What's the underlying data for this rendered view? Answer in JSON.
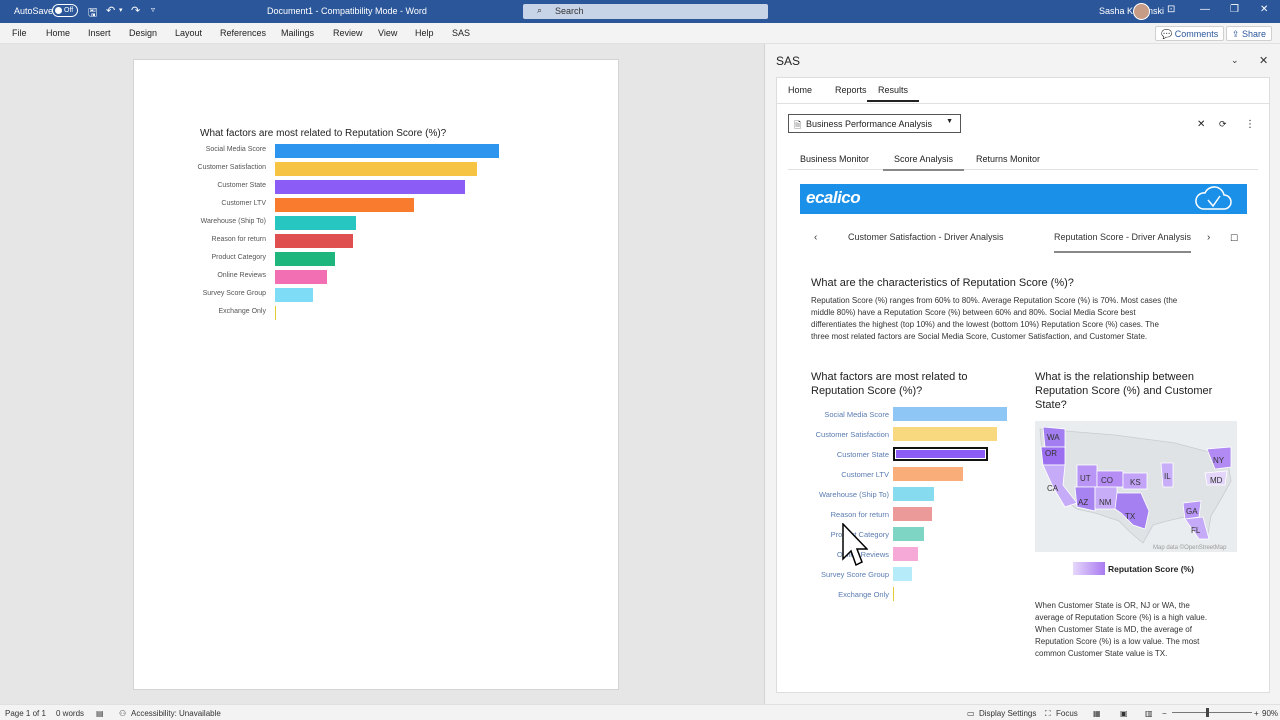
{
  "titlebar": {
    "autosave": "AutoSave",
    "autosave_state": "Off",
    "doc_title": "Document1 - Compatibility Mode - Word",
    "search_placeholder": "Search",
    "user_name": "Sasha Karpinski"
  },
  "menu": {
    "items": [
      "File",
      "Home",
      "Insert",
      "Design",
      "Layout",
      "References",
      "Mailings",
      "Review",
      "View",
      "Help",
      "SAS"
    ],
    "comments": "Comments",
    "share": "Share"
  },
  "document": {
    "chart_title": "What factors are most related to Reputation Score (%)?"
  },
  "pane": {
    "title": "SAS",
    "tabs": [
      "Home",
      "Reports",
      "Results"
    ],
    "active_tab": "Results",
    "report_dropdown": "Business Performance Analysis",
    "report_tabs": [
      "Business Monitor",
      "Score Analysis",
      "Returns Monitor"
    ],
    "active_report_tab": "Score Analysis",
    "banner_logo": "ecalico",
    "crumbs": [
      "Customer Satisfaction - Driver Analysis",
      "Reputation Score - Driver Analysis"
    ],
    "q1_title": "What are the characteristics of Reputation Score (%)?",
    "q1_lines": [
      "Reputation Score (%) ranges from 60% to 80%. Average Reputation Score (%) is 70%. Most cases (the",
      "middle 80%) have a Reputation Score (%) between 60% and 80%. Social Media Score best",
      "differentiates the highest (top 10%) and the lowest (bottom 10%) Reputation Score (%) cases. The",
      "three most related factors are Social Media Score, Customer Satisfaction, and Customer State."
    ],
    "q2_title_lines": [
      "What factors are most related to",
      "Reputation Score (%)?"
    ],
    "q3_title_lines": [
      "What is the relationship between",
      "Reputation Score (%) and Customer",
      "State?"
    ],
    "map_attribution": "Map data ©OpenStreetMap",
    "map_legend": "Reputation Score (%)",
    "q3_lines": [
      "When Customer State is OR, NJ or WA, the",
      "average of Reputation Score (%) is a high value.",
      "When Customer State is MD, the average of",
      "Reputation Score (%) is a low value. The most",
      "common Customer State value is TX."
    ],
    "state_labels": [
      "WA",
      "OR",
      "CA",
      "UT",
      "CO",
      "KS",
      "AZ",
      "NM",
      "TX",
      "IL",
      "NY",
      "MD",
      "GA",
      "FL"
    ]
  },
  "statusbar": {
    "page": "Page 1 of 1",
    "words": "0 words",
    "accessibility": "Accessibility: Unavailable",
    "display_settings": "Display Settings",
    "focus": "Focus",
    "zoom": "90%"
  },
  "colors": {
    "word_blue": "#2b579a",
    "banner_blue": "#1b90e8"
  },
  "chart_data": [
    {
      "type": "bar",
      "orientation": "horizontal",
      "title": "What factors are most related to Reputation Score (%)?",
      "categories": [
        "Social Media Score",
        "Customer Satisfaction",
        "Customer State",
        "Customer LTV",
        "Warehouse (Ship To)",
        "Reason for return",
        "Product Category",
        "Online Reviews",
        "Survey Score Group",
        "Exchange Only"
      ],
      "values": [
        100,
        90,
        85,
        62,
        36,
        35,
        27,
        23,
        17,
        0.5
      ],
      "colors": [
        "#2e95ef",
        "#f6c342",
        "#8b5cf6",
        "#f97c2e",
        "#27c6c0",
        "#e04f4f",
        "#1fb67d",
        "#f26fb4",
        "#7fdcf7",
        "#e4cc34"
      ]
    },
    {
      "type": "bar",
      "orientation": "horizontal",
      "title": "What factors are most related to Reputation Score (%)?",
      "categories": [
        "Social Media Score",
        "Customer Satisfaction",
        "Customer State",
        "Customer LTV",
        "Warehouse (Ship To)",
        "Reason for return",
        "Product Category",
        "Online Reviews",
        "Survey Score Group",
        "Exchange Only"
      ],
      "values": [
        100,
        91,
        83,
        61,
        36,
        34,
        27,
        22,
        17,
        0.5
      ],
      "colors": [
        "#8ec6f5",
        "#f8d980",
        "#8b5cf6",
        "#f9ad78",
        "#86dcee",
        "#ec9999",
        "#7fd5c3",
        "#f6a8d6",
        "#b6ebf9",
        "#e4cc34"
      ]
    }
  ]
}
